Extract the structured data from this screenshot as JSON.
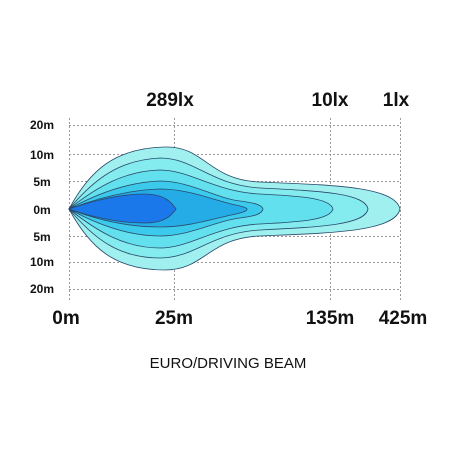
{
  "chart_data": {
    "type": "area",
    "title": "EURO/DRIVING BEAM",
    "x_tick_labels": [
      "0m",
      "25m",
      "135m",
      "425m"
    ],
    "y_tick_labels": [
      "20m",
      "10m",
      "5m",
      "0m",
      "5m",
      "10m",
      "20m"
    ],
    "lux_labels": [
      {
        "text": "289lx",
        "at": "25m"
      },
      {
        "text": "10lx",
        "at": "135m"
      },
      {
        "text": "1lx",
        "at": "425m"
      }
    ],
    "grid": true,
    "contours": [
      {
        "level": "1lx",
        "color": "#9ff0ef"
      },
      {
        "level": "",
        "color": "#84ebef"
      },
      {
        "level": "10lx",
        "color": "#63e0ee"
      },
      {
        "level": "",
        "color": "#3bcaec"
      },
      {
        "level": "",
        "color": "#25abe6"
      },
      {
        "level": "289lx",
        "color": "#1a78ea"
      }
    ]
  }
}
